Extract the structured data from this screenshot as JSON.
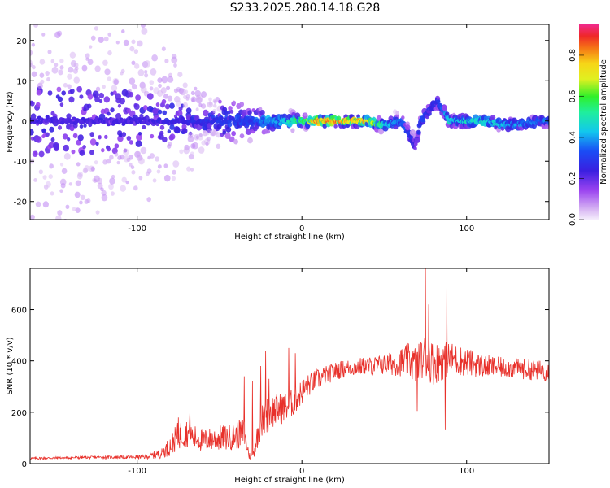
{
  "title": "S233.2025.280.14.18.G28",
  "chart_data": [
    {
      "type": "heatmap",
      "xlabel": "Height of straight line (km)",
      "ylabel": "Frequency (Hz)",
      "xlim": [
        -165,
        150
      ],
      "ylim": [
        -24.5,
        24
      ],
      "xticks": [
        -100,
        0,
        100
      ],
      "yticks": [
        -20,
        -10,
        0,
        10,
        20
      ],
      "colorbar": {
        "label": "Normalized spectral amplitude",
        "range": [
          0.0,
          0.95
        ],
        "ticks": [
          0.0,
          0.2,
          0.4,
          0.6,
          0.8
        ],
        "tick_labels": [
          "0.0",
          "0.2",
          "0.4",
          "0.6",
          "0.8"
        ]
      },
      "ridge": [
        {
          "x": -165,
          "freq": 0,
          "spread": 22,
          "amp": 0.25
        },
        {
          "x": -100,
          "freq": 0,
          "spread": 18,
          "amp": 0.25
        },
        {
          "x": -60,
          "freq": 0,
          "spread": 6,
          "amp": 0.3
        },
        {
          "x": -30,
          "freq": 0,
          "spread": 3,
          "amp": 0.35
        },
        {
          "x": -20,
          "freq": 0,
          "spread": 2,
          "amp": 0.45
        },
        {
          "x": 0,
          "freq": 0,
          "spread": 1.2,
          "amp": 0.6
        },
        {
          "x": 10,
          "freq": 0,
          "spread": 1,
          "amp": 0.9
        },
        {
          "x": 40,
          "freq": 0,
          "spread": 1,
          "amp": 0.85
        },
        {
          "x": 50,
          "freq": -1,
          "spread": 1.2,
          "amp": 0.5
        },
        {
          "x": 60,
          "freq": 0,
          "spread": 1.5,
          "amp": 0.4
        },
        {
          "x": 69,
          "freq": -6,
          "spread": 2,
          "amp": 0.25
        },
        {
          "x": 72,
          "freq": 0,
          "spread": 1.5,
          "amp": 0.35
        },
        {
          "x": 82,
          "freq": 5,
          "spread": 1.5,
          "amp": 0.3
        },
        {
          "x": 90,
          "freq": 0,
          "spread": 1.2,
          "amp": 0.5
        },
        {
          "x": 110,
          "freq": 0,
          "spread": 1.2,
          "amp": 0.55
        },
        {
          "x": 125,
          "freq": -1,
          "spread": 1.2,
          "amp": 0.45
        },
        {
          "x": 150,
          "freq": 0,
          "spread": 1.2,
          "amp": 0.4
        }
      ]
    },
    {
      "type": "line",
      "xlabel": "Height of straight line (km)",
      "ylabel": "SNR (10 * v/v)",
      "xlim": [
        -165,
        150
      ],
      "ylim": [
        0,
        760
      ],
      "xticks": [
        -100,
        0,
        100
      ],
      "yticks": [
        0,
        200,
        400,
        600
      ],
      "series": [
        {
          "color": "#e8302a",
          "x": [
            -165,
            -150,
            -130,
            -110,
            -95,
            -85,
            -80,
            -75,
            -70,
            -65,
            -60,
            -55,
            -50,
            -45,
            -40,
            -35,
            -32,
            -30,
            -25,
            -22,
            -20,
            -15,
            -10,
            -5,
            0,
            5,
            10,
            20,
            30,
            40,
            50,
            60,
            65,
            70,
            75,
            80,
            85,
            90,
            100,
            110,
            120,
            130,
            140,
            150
          ],
          "y": [
            20,
            22,
            24,
            25,
            26,
            40,
            70,
            110,
            120,
            100,
            90,
            95,
            100,
            100,
            110,
            120,
            30,
            25,
            160,
            180,
            200,
            210,
            220,
            240,
            280,
            310,
            330,
            360,
            375,
            380,
            385,
            395,
            400,
            380,
            420,
            390,
            400,
            410,
            395,
            380,
            375,
            370,
            365,
            360
          ],
          "noise": [
            5,
            5,
            5,
            6,
            8,
            20,
            40,
            55,
            55,
            50,
            45,
            45,
            50,
            50,
            55,
            60,
            15,
            15,
            70,
            70,
            70,
            65,
            60,
            55,
            50,
            45,
            40,
            35,
            35,
            35,
            40,
            55,
            70,
            80,
            90,
            85,
            75,
            65,
            55,
            45,
            40,
            40,
            40,
            40
          ],
          "peaks": [
            {
              "x": -35,
              "y": 340
            },
            {
              "x": -25,
              "y": 380
            },
            {
              "x": -22,
              "y": 440
            },
            {
              "x": -20,
              "y": 330
            },
            {
              "x": -8,
              "y": 450
            },
            {
              "x": -4,
              "y": 430
            },
            {
              "x": 75,
              "y": 760
            },
            {
              "x": 77,
              "y": 620
            },
            {
              "x": 88,
              "y": 685
            },
            {
              "x": 87,
              "y": 130
            },
            {
              "x": 70,
              "y": 205
            },
            {
              "x": -68,
              "y": 205
            },
            {
              "x": -75,
              "y": 180
            },
            {
              "x": -30,
              "y": 320
            }
          ]
        }
      ]
    }
  ]
}
